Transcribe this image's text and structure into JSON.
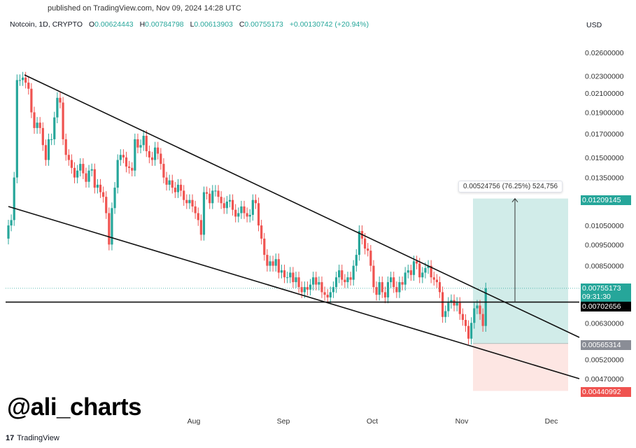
{
  "header": {
    "published": "published on TradingView.com, Nov 09, 2024 14:28 UTC",
    "symbol": "Notcoin, 1D, CRYPTO",
    "o_label": "O",
    "o": "0.00624443",
    "h_label": "H",
    "h": "0.00784798",
    "l_label": "L",
    "l": "0.00613903",
    "c_label": "C",
    "c": "0.00755173",
    "change": "+0.00130742 (+20.94%)",
    "currency": "USD"
  },
  "colors": {
    "up": "#26a69a",
    "down": "#ef5350",
    "target_zone": "#b2dfdb",
    "stop_zone": "#fde0dc"
  },
  "chart_data": {
    "type": "candlestick",
    "scale": "log",
    "ylim": [
      0.0043,
      0.0285
    ],
    "y_ticks": [
      "0.02600000",
      "0.02300000",
      "0.02100000",
      "0.01900000",
      "0.01700000",
      "0.01500000",
      "0.01350000",
      "0.01050000",
      "0.00950000",
      "0.00850000",
      "0.00630000",
      "0.00520000",
      "0.00470000"
    ],
    "x_ticks": [
      "Aug",
      "Sep",
      "Oct",
      "Nov",
      "Dec"
    ],
    "first_open": 0.0098,
    "closes": [
      0.0105,
      0.0108,
      0.0135,
      0.0225,
      0.0225,
      0.0228,
      0.0222,
      0.0215,
      0.019,
      0.0175,
      0.018,
      0.0175,
      0.016,
      0.0148,
      0.0165,
      0.0165,
      0.0185,
      0.0205,
      0.02,
      0.0165,
      0.0152,
      0.0148,
      0.0142,
      0.0135,
      0.014,
      0.0145,
      0.0138,
      0.0132,
      0.014,
      0.0141,
      0.0128,
      0.013,
      0.0125,
      0.0122,
      0.0112,
      0.0095,
      0.0115,
      0.0128,
      0.0148,
      0.0152,
      0.015,
      0.0143,
      0.0142,
      0.014,
      0.0165,
      0.0158,
      0.016,
      0.0168,
      0.0155,
      0.015,
      0.0148,
      0.0158,
      0.0153,
      0.0145,
      0.0135,
      0.013,
      0.0133,
      0.0128,
      0.0125,
      0.013,
      0.0126,
      0.012,
      0.0118,
      0.012,
      0.0116,
      0.0112,
      0.0108,
      0.01,
      0.0125,
      0.0124,
      0.0118,
      0.0126,
      0.0126,
      0.0122,
      0.0118,
      0.0115,
      0.0119,
      0.012,
      0.0114,
      0.011,
      0.0112,
      0.0116,
      0.0112,
      0.011,
      0.0111,
      0.012,
      0.0118,
      0.0105,
      0.0098,
      0.009,
      0.0085,
      0.0087,
      0.0085,
      0.0088,
      0.0082,
      0.0083,
      0.008,
      0.008,
      0.0082,
      0.0078,
      0.008,
      0.0076,
      0.0074,
      0.0076,
      0.0075,
      0.0077,
      0.008,
      0.0077,
      0.0078,
      0.0074,
      0.0073,
      0.0072,
      0.0074,
      0.0076,
      0.008,
      0.0083,
      0.0079,
      0.0078,
      0.008,
      0.0079,
      0.0085,
      0.009,
      0.0102,
      0.0098,
      0.0093,
      0.0092,
      0.0085,
      0.0076,
      0.0073,
      0.0078,
      0.0074,
      0.0072,
      0.0078,
      0.008,
      0.0076,
      0.0074,
      0.0078,
      0.0077,
      0.0082,
      0.0083,
      0.0081,
      0.0087,
      0.0086,
      0.008,
      0.0082,
      0.0084,
      0.0085,
      0.008,
      0.0079,
      0.0078,
      0.0074,
      0.0065,
      0.0067,
      0.007,
      0.0071,
      0.0069,
      0.007,
      0.0066,
      0.0064,
      0.0062,
      0.0058,
      0.0063,
      0.0068,
      0.0069,
      0.0066,
      0.0062,
      0.00755173
    ],
    "horizontal_level": 0.00702656,
    "position": {
      "entry": "0.00565314",
      "target": "0.01209145",
      "stop": "0.00440992"
    },
    "measure_label": "0.00524756 (76.25%) 524,756",
    "price_tags": {
      "last": "0.00755173",
      "countdown": "09:31:30",
      "level": "0.00702656",
      "entry": "0.00565314",
      "target": "0.01209145",
      "stop": "0.00440992"
    }
  },
  "watermark": "@ali_charts",
  "footer": {
    "logo_text": "TradingView",
    "logo_mark": "17"
  }
}
